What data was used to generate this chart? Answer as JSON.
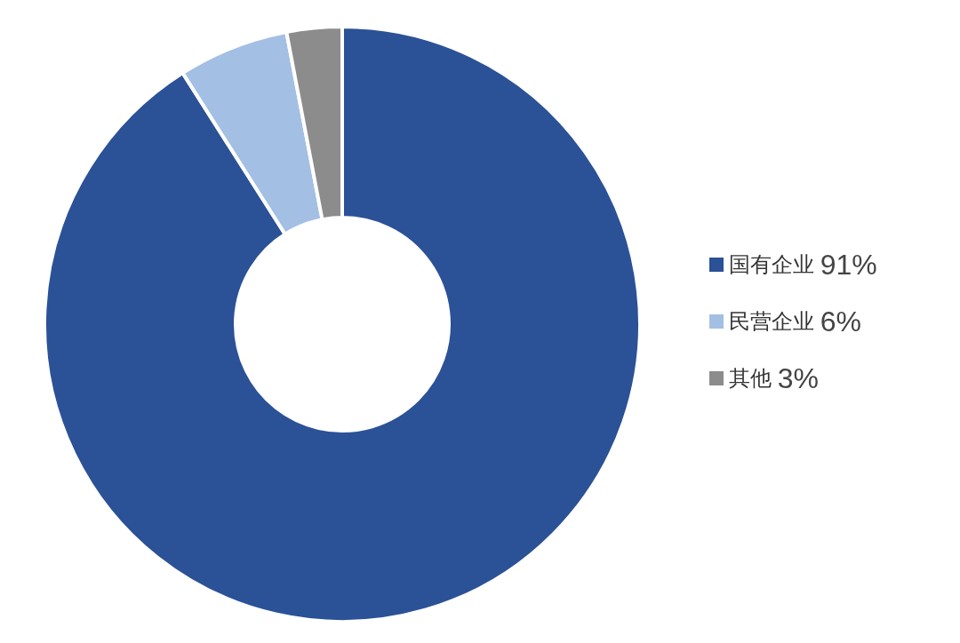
{
  "chart_data": {
    "type": "donut",
    "categories": [
      "国有企业",
      "民营企业",
      "其他"
    ],
    "values": [
      91,
      6,
      3
    ],
    "colors": [
      "#2b5197",
      "#a3bfe3",
      "#8c8c8c"
    ],
    "value_labels": [
      "91%",
      "6%",
      "3%"
    ],
    "legend": "right"
  }
}
